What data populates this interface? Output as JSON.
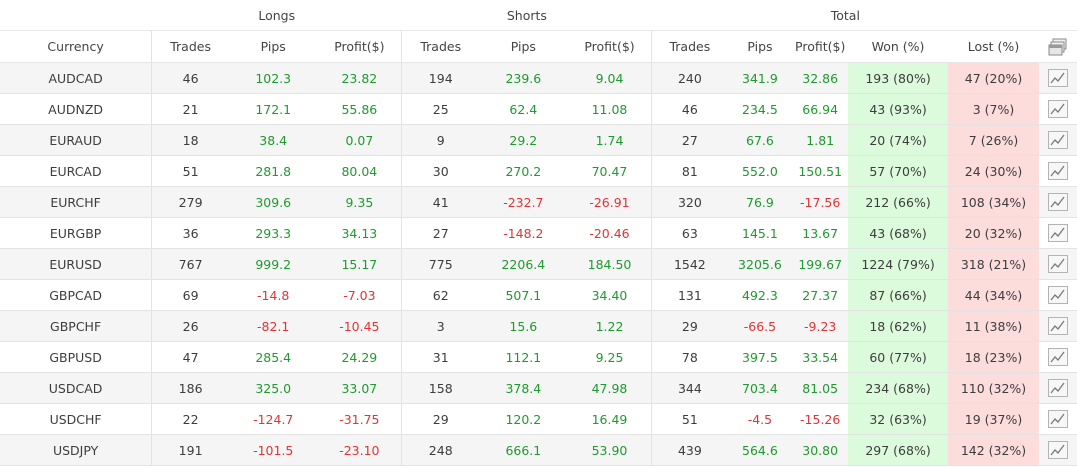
{
  "groups": {
    "longs": "Longs",
    "shorts": "Shorts",
    "total": "Total"
  },
  "columns": {
    "currency": "Currency",
    "trades": "Trades",
    "pips": "Pips",
    "profit": "Profit($)",
    "won": "Won (%)",
    "lost": "Lost (%)"
  },
  "icons": {
    "header": "pages-icon",
    "row": "chart-icon"
  },
  "colors": {
    "positive": "#1f9a2e",
    "negative": "#e03434",
    "won_bg": "#dcfadc",
    "lost_bg": "#fddcdc"
  },
  "rows": [
    {
      "currency": "AUDCAD",
      "longs": {
        "trades": "46",
        "pips": "102.3",
        "profit": "23.82"
      },
      "shorts": {
        "trades": "194",
        "pips": "239.6",
        "profit": "9.04"
      },
      "total": {
        "trades": "240",
        "pips": "341.9",
        "profit": "32.86",
        "won": "193 (80%)",
        "lost": "47 (20%)"
      }
    },
    {
      "currency": "AUDNZD",
      "longs": {
        "trades": "21",
        "pips": "172.1",
        "profit": "55.86"
      },
      "shorts": {
        "trades": "25",
        "pips": "62.4",
        "profit": "11.08"
      },
      "total": {
        "trades": "46",
        "pips": "234.5",
        "profit": "66.94",
        "won": "43 (93%)",
        "lost": "3 (7%)"
      }
    },
    {
      "currency": "EURAUD",
      "longs": {
        "trades": "18",
        "pips": "38.4",
        "profit": "0.07"
      },
      "shorts": {
        "trades": "9",
        "pips": "29.2",
        "profit": "1.74"
      },
      "total": {
        "trades": "27",
        "pips": "67.6",
        "profit": "1.81",
        "won": "20 (74%)",
        "lost": "7 (26%)"
      }
    },
    {
      "currency": "EURCAD",
      "longs": {
        "trades": "51",
        "pips": "281.8",
        "profit": "80.04"
      },
      "shorts": {
        "trades": "30",
        "pips": "270.2",
        "profit": "70.47"
      },
      "total": {
        "trades": "81",
        "pips": "552.0",
        "profit": "150.51",
        "won": "57 (70%)",
        "lost": "24 (30%)"
      }
    },
    {
      "currency": "EURCHF",
      "longs": {
        "trades": "279",
        "pips": "309.6",
        "profit": "9.35"
      },
      "shorts": {
        "trades": "41",
        "pips": "-232.7",
        "profit": "-26.91"
      },
      "total": {
        "trades": "320",
        "pips": "76.9",
        "profit": "-17.56",
        "won": "212 (66%)",
        "lost": "108 (34%)"
      }
    },
    {
      "currency": "EURGBP",
      "longs": {
        "trades": "36",
        "pips": "293.3",
        "profit": "34.13"
      },
      "shorts": {
        "trades": "27",
        "pips": "-148.2",
        "profit": "-20.46"
      },
      "total": {
        "trades": "63",
        "pips": "145.1",
        "profit": "13.67",
        "won": "43 (68%)",
        "lost": "20 (32%)"
      }
    },
    {
      "currency": "EURUSD",
      "longs": {
        "trades": "767",
        "pips": "999.2",
        "profit": "15.17"
      },
      "shorts": {
        "trades": "775",
        "pips": "2206.4",
        "profit": "184.50"
      },
      "total": {
        "trades": "1542",
        "pips": "3205.6",
        "profit": "199.67",
        "won": "1224 (79%)",
        "lost": "318 (21%)"
      }
    },
    {
      "currency": "GBPCAD",
      "longs": {
        "trades": "69",
        "pips": "-14.8",
        "profit": "-7.03"
      },
      "shorts": {
        "trades": "62",
        "pips": "507.1",
        "profit": "34.40"
      },
      "total": {
        "trades": "131",
        "pips": "492.3",
        "profit": "27.37",
        "won": "87 (66%)",
        "lost": "44 (34%)"
      }
    },
    {
      "currency": "GBPCHF",
      "longs": {
        "trades": "26",
        "pips": "-82.1",
        "profit": "-10.45"
      },
      "shorts": {
        "trades": "3",
        "pips": "15.6",
        "profit": "1.22"
      },
      "total": {
        "trades": "29",
        "pips": "-66.5",
        "profit": "-9.23",
        "won": "18 (62%)",
        "lost": "11 (38%)"
      }
    },
    {
      "currency": "GBPUSD",
      "longs": {
        "trades": "47",
        "pips": "285.4",
        "profit": "24.29"
      },
      "shorts": {
        "trades": "31",
        "pips": "112.1",
        "profit": "9.25"
      },
      "total": {
        "trades": "78",
        "pips": "397.5",
        "profit": "33.54",
        "won": "60 (77%)",
        "lost": "18 (23%)"
      }
    },
    {
      "currency": "USDCAD",
      "longs": {
        "trades": "186",
        "pips": "325.0",
        "profit": "33.07"
      },
      "shorts": {
        "trades": "158",
        "pips": "378.4",
        "profit": "47.98"
      },
      "total": {
        "trades": "344",
        "pips": "703.4",
        "profit": "81.05",
        "won": "234 (68%)",
        "lost": "110 (32%)"
      }
    },
    {
      "currency": "USDCHF",
      "longs": {
        "trades": "22",
        "pips": "-124.7",
        "profit": "-31.75"
      },
      "shorts": {
        "trades": "29",
        "pips": "120.2",
        "profit": "16.49"
      },
      "total": {
        "trades": "51",
        "pips": "-4.5",
        "profit": "-15.26",
        "won": "32 (63%)",
        "lost": "19 (37%)"
      }
    },
    {
      "currency": "USDJPY",
      "longs": {
        "trades": "191",
        "pips": "-101.5",
        "profit": "-23.10"
      },
      "shorts": {
        "trades": "248",
        "pips": "666.1",
        "profit": "53.90"
      },
      "total": {
        "trades": "439",
        "pips": "564.6",
        "profit": "30.80",
        "won": "297 (68%)",
        "lost": "142 (32%)"
      }
    }
  ]
}
